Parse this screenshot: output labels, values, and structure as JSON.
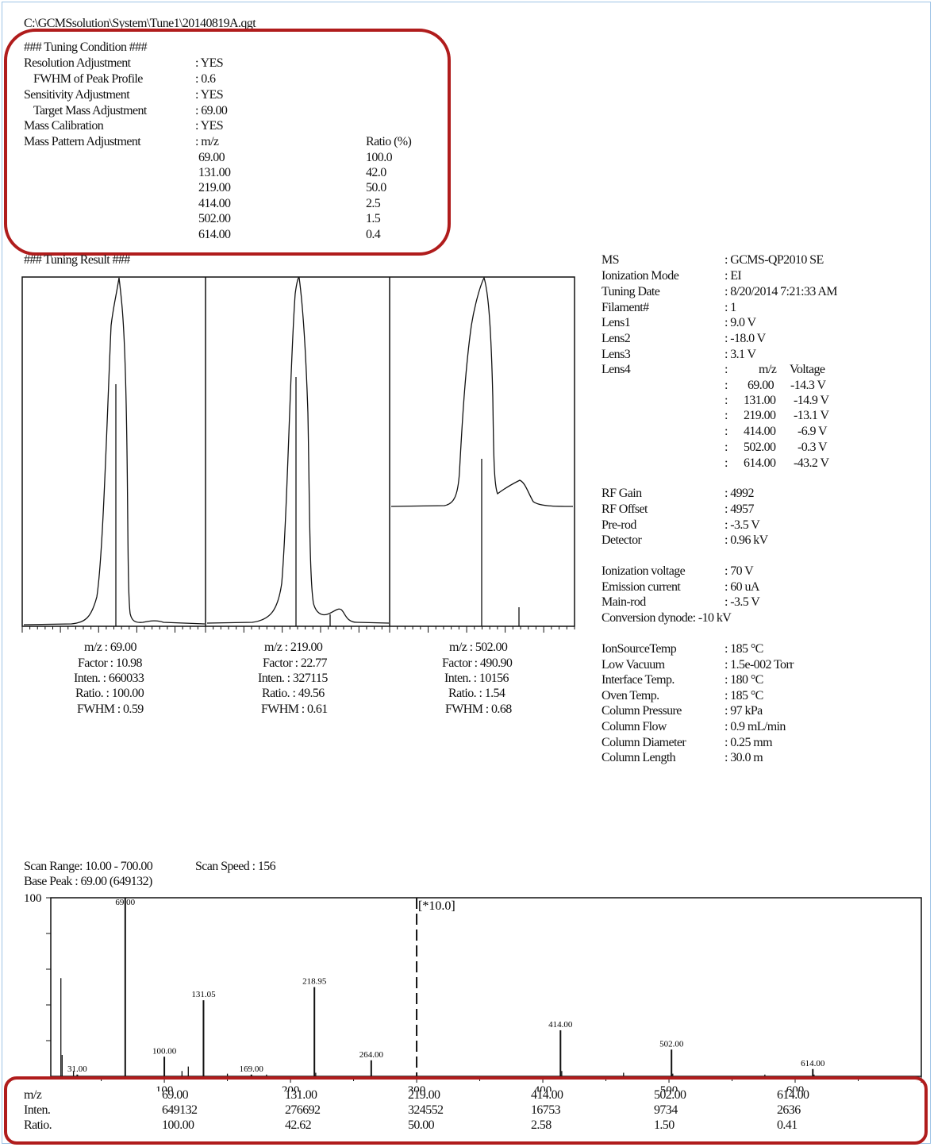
{
  "file_path": "C:\\GCMSsolution\\System\\Tune1\\20140819A.qgt",
  "tuning_condition": {
    "heading": "### Tuning Condition ###",
    "rows": [
      {
        "label": "Resolution Adjustment",
        "value": ": YES"
      },
      {
        "label": "FWHM of Peak Profile",
        "value": ": 0.6"
      },
      {
        "label": "Sensitivity Adjustment",
        "value": ": YES"
      },
      {
        "label": "Target Mass Adjustment",
        "value": ": 69.00"
      },
      {
        "label": "Mass Calibration",
        "value": ": YES"
      },
      {
        "label": "Mass Pattern Adjustment",
        "value": ": m/z"
      }
    ],
    "ratio_header": "Ratio (%)",
    "mass_pattern": [
      {
        "mz": "69.00",
        "ratio": "100.0"
      },
      {
        "mz": "131.00",
        "ratio": "42.0"
      },
      {
        "mz": "219.00",
        "ratio": "50.0"
      },
      {
        "mz": "414.00",
        "ratio": "2.5"
      },
      {
        "mz": "502.00",
        "ratio": "1.5"
      },
      {
        "mz": "614.00",
        "ratio": "0.4"
      }
    ]
  },
  "tuning_result": {
    "heading": "### Tuning Result ###",
    "peaks": [
      {
        "mz": "m/z : 69.00",
        "factor": "Factor : 10.98",
        "inten": "Inten. : 660033",
        "ratio": "Ratio. : 100.00",
        "fwhm": "FWHM : 0.59"
      },
      {
        "mz": "m/z : 219.00",
        "factor": "Factor : 22.77",
        "inten": "Inten. : 327115",
        "ratio": "Ratio. : 49.56",
        "fwhm": "FWHM : 0.61"
      },
      {
        "mz": "m/z : 502.00",
        "factor": "Factor : 490.90",
        "inten": "Inten. : 10156",
        "ratio": "Ratio. : 1.54",
        "fwhm": "FWHM : 0.68"
      }
    ]
  },
  "instrument": {
    "rows_a": [
      {
        "label": "MS",
        "value": ": GCMS-QP2010 SE"
      },
      {
        "label": "Ionization Mode",
        "value": ": EI"
      },
      {
        "label": "Tuning Date",
        "value": ": 8/20/2014 7:21:33 AM"
      },
      {
        "label": "Filament#",
        "value": ": 1"
      },
      {
        "label": "Lens1",
        "value": ": 9.0 V"
      },
      {
        "label": "Lens2",
        "value": ": -18.0 V"
      },
      {
        "label": "Lens3",
        "value": ": 3.1 V"
      },
      {
        "label": "Lens4",
        "value": ":"
      }
    ],
    "lens4_header": {
      "mz": "m/z",
      "voltage": "Voltage"
    },
    "lens4": [
      {
        "mz": "69.00",
        "voltage": "-14.3 V"
      },
      {
        "mz": "131.00",
        "voltage": "-14.9 V"
      },
      {
        "mz": "219.00",
        "voltage": "-13.1 V"
      },
      {
        "mz": "414.00",
        "voltage": "-6.9 V"
      },
      {
        "mz": "502.00",
        "voltage": "-0.3 V"
      },
      {
        "mz": "614.00",
        "voltage": "-43.2 V"
      }
    ],
    "rows_b": [
      {
        "label": "RF Gain",
        "value": ": 4992"
      },
      {
        "label": "RF Offset",
        "value": ": 4957"
      },
      {
        "label": "Pre-rod",
        "value": ": -3.5 V"
      },
      {
        "label": "Detector",
        "value": ": 0.96 kV"
      }
    ],
    "rows_c": [
      {
        "label": "Ionization voltage",
        "value": ": 70 V"
      },
      {
        "label": "Emission current",
        "value": ": 60 uA"
      },
      {
        "label": "Main-rod",
        "value": ": -3.5 V"
      }
    ],
    "conversion_dynode": "Conversion dynode: -10 kV",
    "rows_d": [
      {
        "label": "IonSourceTemp",
        "value": ": 185 °C"
      },
      {
        "label": "Low Vacuum",
        "value": ": 1.5e-002 Torr"
      },
      {
        "label": "Interface Temp.",
        "value": ": 180 °C"
      },
      {
        "label": "Oven Temp.",
        "value": ": 185 °C"
      },
      {
        "label": "Column Pressure",
        "value": ": 97 kPa"
      },
      {
        "label": "Column Flow",
        "value": ": 0.9 mL/min"
      },
      {
        "label": "Column Diameter",
        "value": ": 0.25 mm"
      },
      {
        "label": "Column Length",
        "value": ": 30.0 m"
      }
    ]
  },
  "spectrum_info": {
    "scan_range": "Scan Range: 10.00 - 700.00",
    "scan_speed": "Scan Speed : 156",
    "base_peak": "Base Peak : 69.00 (649132)",
    "magnify_label": "[*10.0]"
  },
  "chart_data": {
    "type": "bar",
    "xlim": [
      10,
      700
    ],
    "ylim": [
      0,
      100
    ],
    "y_tick_label": "100",
    "magnified_from": 300,
    "magnification": 10,
    "x_ticks": [
      "100",
      "200",
      "300",
      "400",
      "500",
      "600"
    ],
    "labeled_peaks": [
      {
        "mz": 31.0,
        "label": "31.00",
        "intensity": 1.0
      },
      {
        "mz": 69.0,
        "label": "69.00",
        "intensity": 100.0
      },
      {
        "mz": 100.0,
        "label": "100.00",
        "intensity": 11.0
      },
      {
        "mz": 131.05,
        "label": "131.05",
        "intensity": 42.6
      },
      {
        "mz": 169.0,
        "label": "169.00",
        "intensity": 1.0
      },
      {
        "mz": 218.95,
        "label": "218.95",
        "intensity": 50.0
      },
      {
        "mz": 264.0,
        "label": "264.00",
        "intensity": 9.0
      },
      {
        "mz": 414.0,
        "label": "414.00",
        "intensity": 25.8
      },
      {
        "mz": 502.0,
        "label": "502.00",
        "intensity": 15.0
      },
      {
        "mz": 614.0,
        "label": "614.00",
        "intensity": 4.1
      }
    ],
    "other_peaks": [
      {
        "mz": 18,
        "intensity": 55.0
      },
      {
        "mz": 19,
        "intensity": 12.0
      },
      {
        "mz": 28,
        "intensity": 3.0
      },
      {
        "mz": 119,
        "intensity": 5.5
      },
      {
        "mz": 114,
        "intensity": 3.0
      },
      {
        "mz": 150,
        "intensity": 1.5
      },
      {
        "mz": 181,
        "intensity": 1.0
      },
      {
        "mz": 220,
        "intensity": 2.0
      },
      {
        "mz": 415,
        "intensity": 3.0
      },
      {
        "mz": 464,
        "intensity": 2.0
      },
      {
        "mz": 503,
        "intensity": 1.5
      },
      {
        "mz": 615,
        "intensity": 1.0
      },
      {
        "mz": 576,
        "intensity": 1.0
      }
    ]
  },
  "summary": {
    "row_labels": {
      "mz": "m/z",
      "inten": "Inten.",
      "ratio": "Ratio."
    },
    "columns": [
      {
        "mz": "69.00",
        "inten": "649132",
        "ratio": "100.00"
      },
      {
        "mz": "131.00",
        "inten": "276692",
        "ratio": "42.62"
      },
      {
        "mz": "219.00",
        "inten": "324552",
        "ratio": "50.00"
      },
      {
        "mz": "414.00",
        "inten": "16753",
        "ratio": "2.58"
      },
      {
        "mz": "502.00",
        "inten": "9734",
        "ratio": "1.50"
      },
      {
        "mz": "614.00",
        "inten": "2636",
        "ratio": "0.41"
      }
    ]
  },
  "highlight_color": "#b01c1c"
}
